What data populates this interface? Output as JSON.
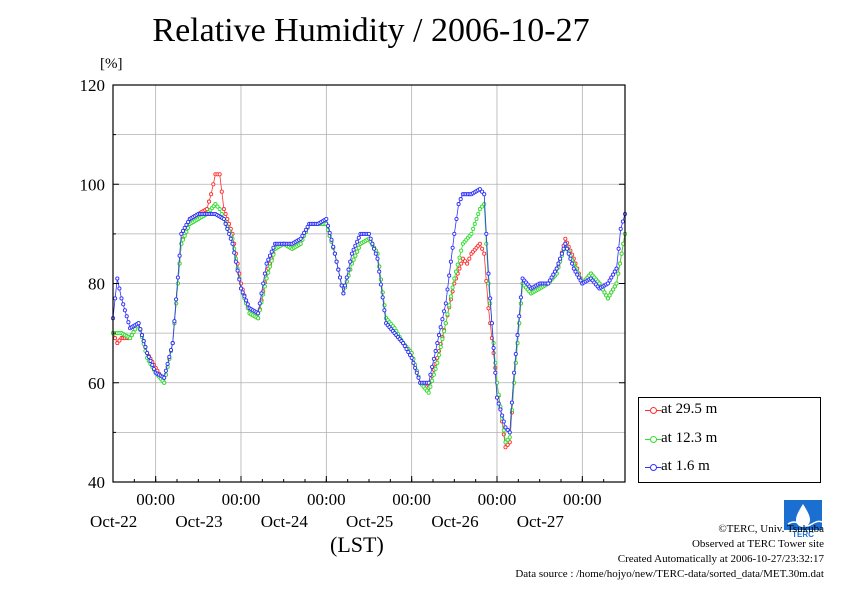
{
  "title": "Relative Humidity / 2006-10-27",
  "unit_label": "[%]",
  "x_axis_title": "(LST)",
  "credits": {
    "copyright": "©TERC, Univ. Tsukuba",
    "observed": "Observed at TERC Tower site",
    "created": "Created Automatically at 2006-10-27/23:32:17",
    "source": "Data source : /home/hojyo/new/TERC-data/sorted_data/MET.30m.dat"
  },
  "logo": {
    "text": "TERC",
    "color": "#1a6fd0"
  },
  "chart_data": {
    "type": "line",
    "title": "Relative Humidity / 2006-10-27",
    "ylabel": "[%]",
    "xlabel": "(LST)",
    "ylim": [
      40,
      120
    ],
    "yticks": [
      40,
      60,
      80,
      100,
      120
    ],
    "xlim": [
      0,
      6
    ],
    "x_unit": "days from Oct-21 12:00",
    "xticks": [
      {
        "x": 0.5,
        "time": "00:00",
        "day": "Oct-22"
      },
      {
        "x": 1.5,
        "time": "00:00",
        "day": "Oct-23"
      },
      {
        "x": 2.5,
        "time": "00:00",
        "day": "Oct-24"
      },
      {
        "x": 3.5,
        "time": "00:00",
        "day": "Oct-25"
      },
      {
        "x": 4.5,
        "time": "00:00",
        "day": "Oct-26"
      },
      {
        "x": 5.5,
        "time": "00:00",
        "day": "Oct-27"
      }
    ],
    "grid": true,
    "legend_position": "bottom-right outside",
    "series": [
      {
        "name": "at 29.5 m",
        "color": "#ff3030",
        "points": [
          [
            0,
            70
          ],
          [
            0.05,
            68
          ],
          [
            0.1,
            69
          ],
          [
            0.2,
            69
          ],
          [
            0.3,
            72
          ],
          [
            0.4,
            66
          ],
          [
            0.5,
            63
          ],
          [
            0.6,
            60
          ],
          [
            0.7,
            68
          ],
          [
            0.8,
            88
          ],
          [
            0.9,
            93
          ],
          [
            1.0,
            94
          ],
          [
            1.1,
            95
          ],
          [
            1.15,
            98
          ],
          [
            1.2,
            102
          ],
          [
            1.25,
            102
          ],
          [
            1.3,
            95
          ],
          [
            1.4,
            90
          ],
          [
            1.5,
            80
          ],
          [
            1.6,
            74
          ],
          [
            1.7,
            73
          ],
          [
            1.8,
            82
          ],
          [
            1.9,
            87
          ],
          [
            2.0,
            88
          ],
          [
            2.1,
            87
          ],
          [
            2.2,
            88
          ],
          [
            2.3,
            92
          ],
          [
            2.4,
            92
          ],
          [
            2.5,
            92
          ],
          [
            2.6,
            86
          ],
          [
            2.7,
            78
          ],
          [
            2.8,
            84
          ],
          [
            2.9,
            88
          ],
          [
            3.0,
            89
          ],
          [
            3.1,
            86
          ],
          [
            3.2,
            73
          ],
          [
            3.3,
            70
          ],
          [
            3.4,
            68
          ],
          [
            3.5,
            66
          ],
          [
            3.6,
            60
          ],
          [
            3.7,
            59
          ],
          [
            3.8,
            65
          ],
          [
            3.9,
            72
          ],
          [
            4.0,
            80
          ],
          [
            4.1,
            85
          ],
          [
            4.15,
            84
          ],
          [
            4.2,
            86
          ],
          [
            4.3,
            88
          ],
          [
            4.35,
            86
          ],
          [
            4.4,
            75
          ],
          [
            4.5,
            60
          ],
          [
            4.6,
            47
          ],
          [
            4.65,
            48
          ],
          [
            4.7,
            60
          ],
          [
            4.8,
            80
          ],
          [
            4.9,
            78
          ],
          [
            5.0,
            79
          ],
          [
            5.1,
            80
          ],
          [
            5.2,
            82
          ],
          [
            5.3,
            89
          ],
          [
            5.4,
            85
          ],
          [
            5.5,
            80
          ],
          [
            5.6,
            82
          ],
          [
            5.7,
            80
          ],
          [
            5.8,
            77
          ],
          [
            5.9,
            80
          ],
          [
            6.0,
            90
          ]
        ]
      },
      {
        "name": "at 12.3 m",
        "color": "#30e030",
        "points": [
          [
            0,
            70
          ],
          [
            0.05,
            70
          ],
          [
            0.1,
            70
          ],
          [
            0.2,
            69
          ],
          [
            0.3,
            72
          ],
          [
            0.4,
            65
          ],
          [
            0.5,
            62
          ],
          [
            0.6,
            60
          ],
          [
            0.7,
            68
          ],
          [
            0.8,
            88
          ],
          [
            0.9,
            92
          ],
          [
            1.0,
            93
          ],
          [
            1.1,
            94
          ],
          [
            1.2,
            96
          ],
          [
            1.25,
            95
          ],
          [
            1.3,
            93
          ],
          [
            1.4,
            89
          ],
          [
            1.5,
            79
          ],
          [
            1.6,
            74
          ],
          [
            1.7,
            73
          ],
          [
            1.8,
            81
          ],
          [
            1.9,
            87
          ],
          [
            2.0,
            88
          ],
          [
            2.1,
            87
          ],
          [
            2.2,
            88
          ],
          [
            2.3,
            92
          ],
          [
            2.4,
            92
          ],
          [
            2.5,
            92
          ],
          [
            2.6,
            86
          ],
          [
            2.7,
            78
          ],
          [
            2.8,
            84
          ],
          [
            2.9,
            88
          ],
          [
            3.0,
            89
          ],
          [
            3.1,
            86
          ],
          [
            3.2,
            73
          ],
          [
            3.3,
            71
          ],
          [
            3.4,
            68
          ],
          [
            3.5,
            66
          ],
          [
            3.6,
            60
          ],
          [
            3.7,
            58
          ],
          [
            3.8,
            64
          ],
          [
            3.9,
            72
          ],
          [
            4.0,
            81
          ],
          [
            4.1,
            88
          ],
          [
            4.2,
            90
          ],
          [
            4.3,
            95
          ],
          [
            4.35,
            96
          ],
          [
            4.4,
            80
          ],
          [
            4.5,
            60
          ],
          [
            4.6,
            48
          ],
          [
            4.65,
            49
          ],
          [
            4.7,
            60
          ],
          [
            4.8,
            80
          ],
          [
            4.9,
            78
          ],
          [
            5.0,
            79
          ],
          [
            5.1,
            80
          ],
          [
            5.2,
            82
          ],
          [
            5.3,
            88
          ],
          [
            5.4,
            84
          ],
          [
            5.5,
            80
          ],
          [
            5.6,
            82
          ],
          [
            5.7,
            80
          ],
          [
            5.8,
            77
          ],
          [
            5.9,
            80
          ],
          [
            6.0,
            90
          ]
        ]
      },
      {
        "name": "at 1.6 m",
        "color": "#3030ff",
        "points": [
          [
            0,
            73
          ],
          [
            0.05,
            81
          ],
          [
            0.1,
            77
          ],
          [
            0.2,
            71
          ],
          [
            0.3,
            72
          ],
          [
            0.4,
            66
          ],
          [
            0.5,
            62
          ],
          [
            0.6,
            61
          ],
          [
            0.7,
            68
          ],
          [
            0.8,
            90
          ],
          [
            0.9,
            93
          ],
          [
            1.0,
            94
          ],
          [
            1.1,
            94
          ],
          [
            1.2,
            94
          ],
          [
            1.3,
            93
          ],
          [
            1.4,
            88
          ],
          [
            1.5,
            79
          ],
          [
            1.6,
            75
          ],
          [
            1.7,
            74
          ],
          [
            1.8,
            84
          ],
          [
            1.9,
            88
          ],
          [
            2.0,
            88
          ],
          [
            2.1,
            88
          ],
          [
            2.2,
            89
          ],
          [
            2.3,
            92
          ],
          [
            2.4,
            92
          ],
          [
            2.5,
            93
          ],
          [
            2.6,
            86
          ],
          [
            2.7,
            78
          ],
          [
            2.8,
            86
          ],
          [
            2.9,
            90
          ],
          [
            3.0,
            90
          ],
          [
            3.1,
            85
          ],
          [
            3.2,
            72
          ],
          [
            3.3,
            70
          ],
          [
            3.4,
            68
          ],
          [
            3.5,
            65
          ],
          [
            3.6,
            60
          ],
          [
            3.7,
            60
          ],
          [
            3.8,
            68
          ],
          [
            3.9,
            76
          ],
          [
            4.0,
            90
          ],
          [
            4.05,
            96
          ],
          [
            4.1,
            98
          ],
          [
            4.2,
            98
          ],
          [
            4.3,
            99
          ],
          [
            4.35,
            98
          ],
          [
            4.4,
            82
          ],
          [
            4.5,
            57
          ],
          [
            4.6,
            51
          ],
          [
            4.65,
            50
          ],
          [
            4.7,
            62
          ],
          [
            4.8,
            81
          ],
          [
            4.9,
            79
          ],
          [
            5.0,
            80
          ],
          [
            5.1,
            80
          ],
          [
            5.2,
            83
          ],
          [
            5.3,
            88
          ],
          [
            5.4,
            83
          ],
          [
            5.5,
            80
          ],
          [
            5.6,
            81
          ],
          [
            5.7,
            79
          ],
          [
            5.8,
            80
          ],
          [
            5.9,
            83
          ],
          [
            5.95,
            91
          ],
          [
            6.0,
            94
          ]
        ]
      }
    ]
  }
}
